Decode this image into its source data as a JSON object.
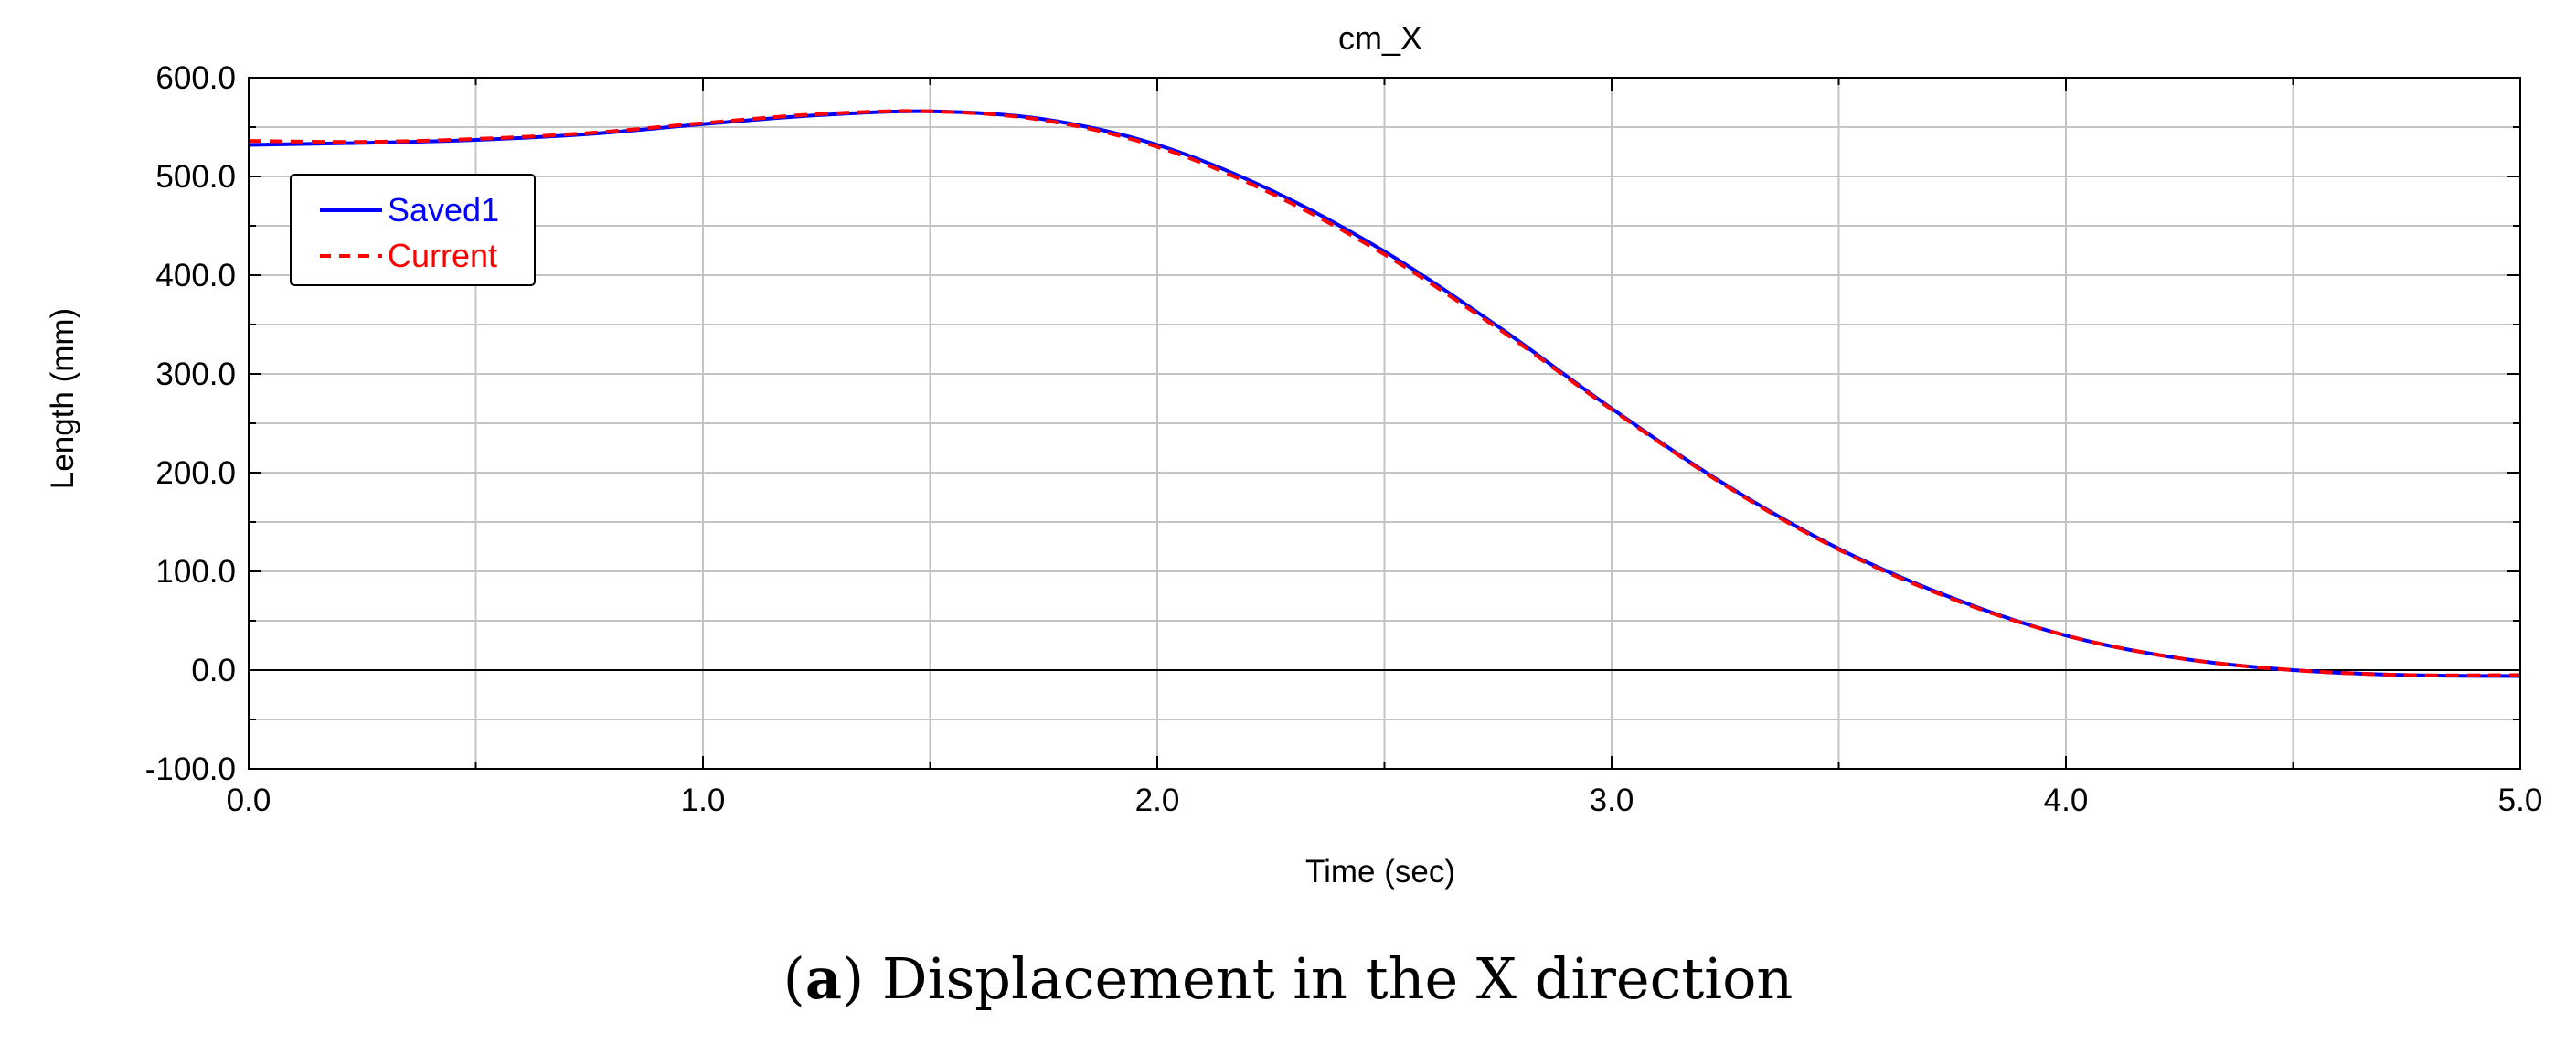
{
  "chart_data": {
    "type": "line",
    "title": "cm_X",
    "xlabel": "Time (sec)",
    "ylabel": "Length (mm)",
    "xlim": [
      0.0,
      5.0
    ],
    "ylim": [
      -100.0,
      600.0
    ],
    "x_ticks": [
      "0.0",
      "1.0",
      "2.0",
      "3.0",
      "4.0",
      "5.0"
    ],
    "y_ticks": [
      "600.0",
      "500.0",
      "400.0",
      "300.0",
      "200.0",
      "100.0",
      "0.0",
      "-100.0"
    ],
    "grid": true,
    "legend_position": "top-left",
    "series": [
      {
        "name": "Saved1",
        "color": "#0000ff",
        "style": "solid",
        "x": [
          0.0,
          0.25,
          0.5,
          0.75,
          1.0,
          1.25,
          1.5,
          1.75,
          2.0,
          2.25,
          2.5,
          2.75,
          3.0,
          3.25,
          3.5,
          3.75,
          4.0,
          4.25,
          4.5,
          4.75,
          5.0
        ],
        "y": [
          532,
          534,
          537,
          543,
          553,
          562,
          566,
          558,
          532,
          486,
          424,
          348,
          265,
          188,
          123,
          73,
          35,
          12,
          0,
          -5,
          -6
        ]
      },
      {
        "name": "Current",
        "color": "#ff0000",
        "style": "dashed",
        "x": [
          0.0,
          0.25,
          0.5,
          0.75,
          1.0,
          1.25,
          1.5,
          1.75,
          2.0,
          2.25,
          2.5,
          2.75,
          3.0,
          3.25,
          3.5,
          3.75,
          4.0,
          4.25,
          4.5,
          4.75,
          5.0
        ],
        "y": [
          536,
          535,
          538,
          544,
          554,
          563,
          566,
          557,
          530,
          483,
          421,
          346,
          264,
          187,
          122,
          72,
          35,
          12,
          0,
          -5,
          -5
        ]
      }
    ]
  },
  "caption": {
    "letter": "a",
    "text": " Displacement in the X direction"
  }
}
